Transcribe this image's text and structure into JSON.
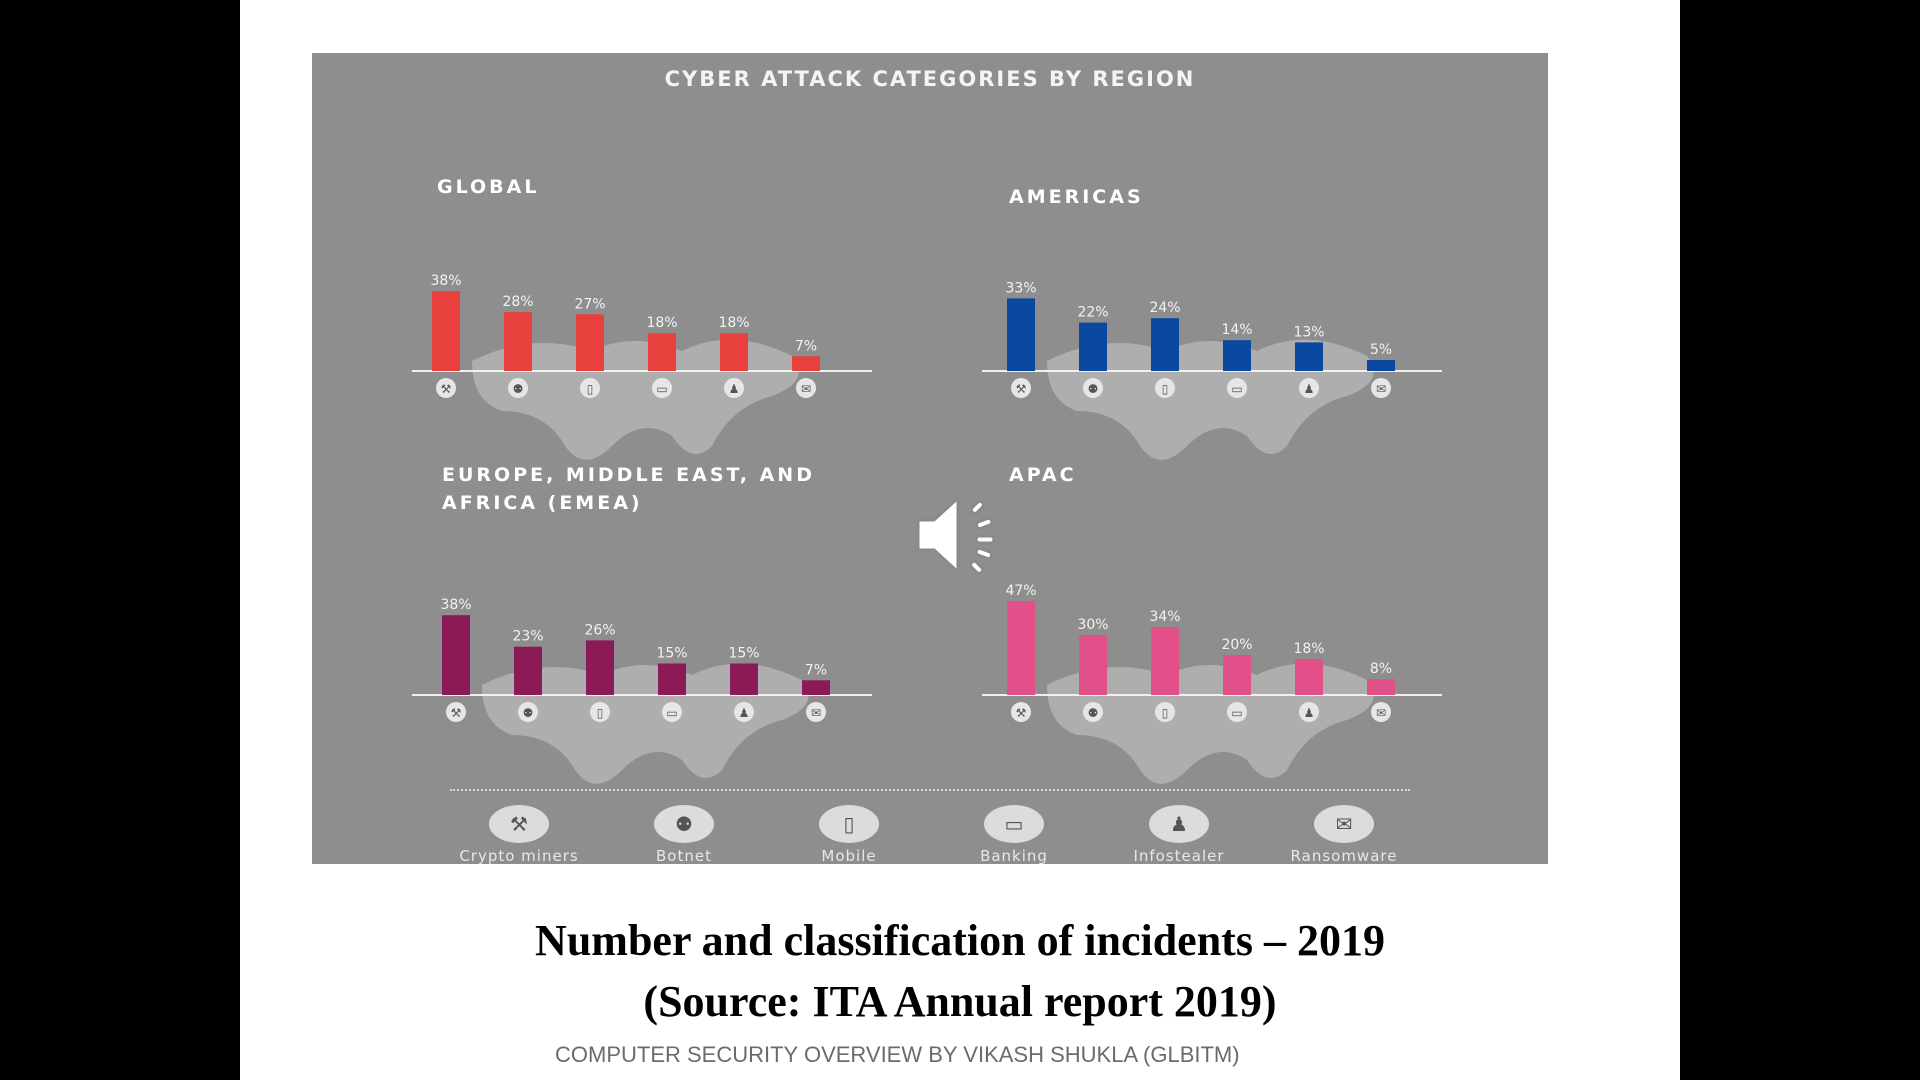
{
  "figure": {
    "title": "CYBER ATTACK CATEGORIES BY REGION",
    "legend": [
      {
        "label": "Crypto miners",
        "icon": "pickaxe-icon",
        "glyph": "⚒"
      },
      {
        "label": "Botnet",
        "icon": "botnet-icon",
        "glyph": "⚉"
      },
      {
        "label": "Mobile",
        "icon": "mobile-icon",
        "glyph": "▯"
      },
      {
        "label": "Banking",
        "icon": "banking-icon",
        "glyph": "▭"
      },
      {
        "label": "Infostealer",
        "icon": "infostealer-icon",
        "glyph": "♟"
      },
      {
        "label": "Ransomware",
        "icon": "ransomware-icon",
        "glyph": "✉"
      }
    ]
  },
  "chart_data": [
    {
      "type": "bar",
      "title": "GLOBAL",
      "categories": [
        "Crypto miners",
        "Botnet",
        "Mobile",
        "Banking",
        "Infostealer",
        "Ransomware"
      ],
      "values": [
        38,
        28,
        27,
        18,
        18,
        7
      ],
      "labels": [
        "38%",
        "28%",
        "27%",
        "18%",
        "18%",
        "7%"
      ],
      "color": "#e8403c",
      "ylim": [
        0,
        50
      ]
    },
    {
      "type": "bar",
      "title": "AMERICAS",
      "categories": [
        "Crypto miners",
        "Botnet",
        "Mobile",
        "Banking",
        "Infostealer",
        "Ransomware"
      ],
      "values": [
        33,
        22,
        24,
        14,
        13,
        5
      ],
      "labels": [
        "33%",
        "22%",
        "24%",
        "14%",
        "13%",
        "5%"
      ],
      "color": "#0a48a0",
      "ylim": [
        0,
        50
      ]
    },
    {
      "type": "bar",
      "title": "EUROPE, MIDDLE EAST, AND AFRICA (EMEA)",
      "categories": [
        "Crypto miners",
        "Botnet",
        "Mobile",
        "Banking",
        "Infostealer",
        "Ransomware"
      ],
      "values": [
        38,
        23,
        26,
        15,
        15,
        7
      ],
      "labels": [
        "38%",
        "23%",
        "26%",
        "15%",
        "15%",
        "7%"
      ],
      "color": "#8b1a55",
      "ylim": [
        0,
        50
      ]
    },
    {
      "type": "bar",
      "title": "APAC",
      "categories": [
        "Crypto miners",
        "Botnet",
        "Mobile",
        "Banking",
        "Infostealer",
        "Ransomware"
      ],
      "values": [
        47,
        30,
        34,
        20,
        18,
        8
      ],
      "labels": [
        "47%",
        "30%",
        "34%",
        "20%",
        "18%",
        "8%"
      ],
      "color": "#e2508a",
      "ylim": [
        0,
        50
      ]
    }
  ],
  "caption": {
    "line1": "Number and classification of incidents – 2019",
    "line2": "(Source: ITA Annual report 2019)"
  },
  "footer": "COMPUTER SECURITY OVERVIEW BY VIKASH SHUKLA (GLBITM)",
  "audio": {
    "icon": "speaker-icon"
  }
}
